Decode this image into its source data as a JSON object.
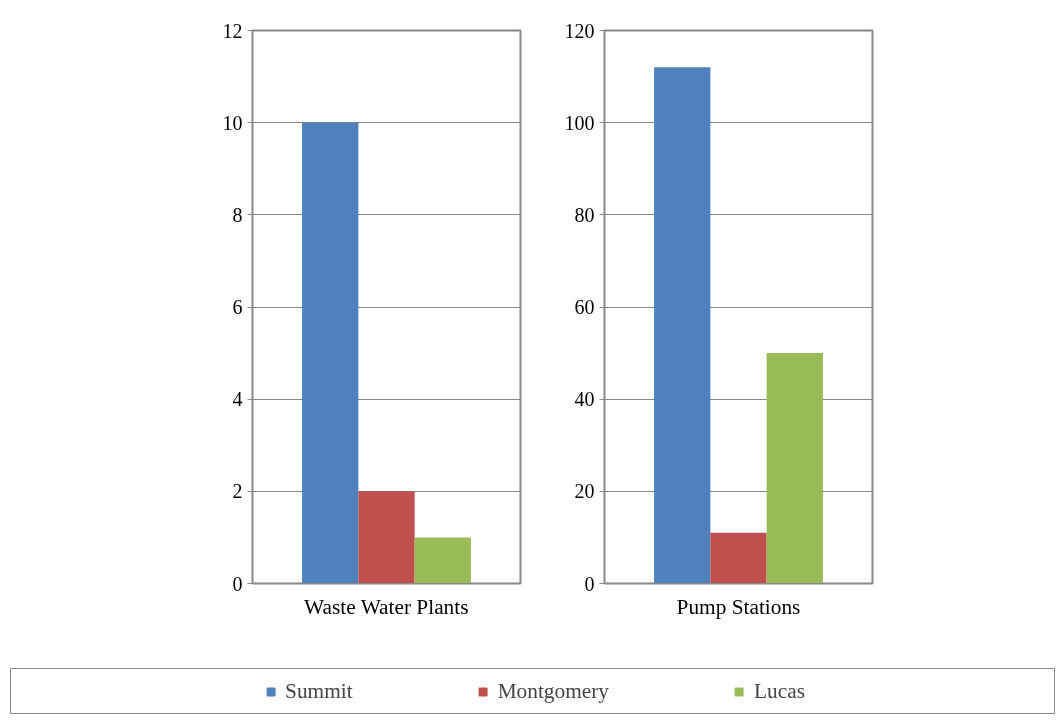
{
  "chart_data": [
    {
      "type": "bar",
      "categories": [
        "Waste Water Plants"
      ],
      "ylim": [
        0,
        12
      ],
      "yticks": [
        0,
        2,
        4,
        6,
        8,
        10,
        12
      ],
      "grid": "y",
      "legend": "bottom",
      "series": [
        {
          "name": "Summit",
          "color": "#4f81bd",
          "values": [
            10
          ]
        },
        {
          "name": "Montgomery",
          "color": "#c0504d",
          "values": [
            2
          ]
        },
        {
          "name": "Lucas",
          "color": "#9bbb59",
          "values": [
            1
          ]
        }
      ]
    },
    {
      "type": "bar",
      "categories": [
        "Pump Stations"
      ],
      "ylim": [
        0,
        120
      ],
      "yticks": [
        0,
        20,
        40,
        60,
        80,
        100,
        120
      ],
      "grid": "y",
      "series": [
        {
          "color": "#4f81bd",
          "values": [
            112
          ]
        },
        {
          "color": "#c0504d",
          "values": [
            11
          ]
        },
        {
          "color": "#9bbb59",
          "values": [
            50
          ]
        }
      ]
    }
  ]
}
